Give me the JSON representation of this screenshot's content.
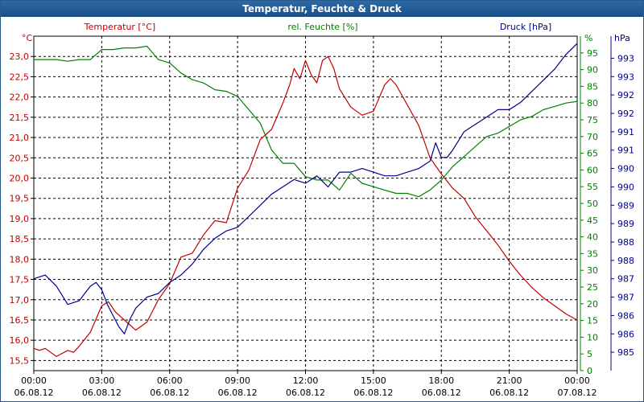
{
  "window": {
    "title": "Temperatur, Feuchte & Druck"
  },
  "chart_data": {
    "type": "line",
    "title": "Temperatur, Feuchte & Druck",
    "x_ticks": [
      [
        "00:00",
        "06.08.12"
      ],
      [
        "03:00",
        "06.08.12"
      ],
      [
        "06:00",
        "06.08.12"
      ],
      [
        "09:00",
        "06.08.12"
      ],
      [
        "12:00",
        "06.08.12"
      ],
      [
        "15:00",
        "06.08.12"
      ],
      [
        "18:00",
        "06.08.12"
      ],
      [
        "21:00",
        "06.08.12"
      ],
      [
        "00:00",
        "07.08.12"
      ]
    ],
    "xlim_hours": [
      0,
      24
    ],
    "grid": true,
    "axes": {
      "left": {
        "unit": "°C",
        "ylim": [
          15.25,
          23.5
        ],
        "ticks": [
          "15,5",
          "16,0",
          "16,5",
          "17,0",
          "17,5",
          "18,0",
          "18,5",
          "19,0",
          "19,5",
          "20,0",
          "20,5",
          "21,0",
          "21,5",
          "22,0",
          "22,5",
          "23,0"
        ],
        "tick_values": [
          15.5,
          16.0,
          16.5,
          17.0,
          17.5,
          18.0,
          18.5,
          19.0,
          19.5,
          20.0,
          20.5,
          21.0,
          21.5,
          22.0,
          22.5,
          23.0
        ],
        "color": "#c00000"
      },
      "right1": {
        "unit": "%",
        "ylim": [
          0,
          100
        ],
        "ticks": [
          "0",
          "5",
          "10",
          "15",
          "20",
          "25",
          "30",
          "35",
          "40",
          "45",
          "50",
          "55",
          "60",
          "65",
          "70",
          "75",
          "80",
          "85",
          "90",
          "95"
        ],
        "tick_values": [
          0,
          5,
          10,
          15,
          20,
          25,
          30,
          35,
          40,
          45,
          50,
          55,
          60,
          65,
          70,
          75,
          80,
          85,
          90,
          95
        ],
        "color": "#008000"
      },
      "right2": {
        "unit": "hPa",
        "ylim": [
          984.5,
          993.6
        ],
        "ticks": [
          "985",
          "986",
          "986",
          "987",
          "987",
          "988",
          "988",
          "989",
          "989",
          "990",
          "990",
          "991",
          "991",
          "992",
          "992",
          "993",
          "993"
        ],
        "tick_values": [
          985,
          985.5,
          986,
          986.5,
          987,
          987.5,
          988,
          988.5,
          989,
          989.5,
          990,
          990.5,
          991,
          991.5,
          992,
          992.5,
          993
        ],
        "color": "#00008b"
      }
    },
    "series": [
      {
        "name": "Temperatur [°C]",
        "axis": "left",
        "color": "#c00000",
        "x": [
          0,
          0.25,
          0.5,
          1,
          1.5,
          1.75,
          2,
          2.5,
          3,
          3.3,
          3.6,
          4,
          4.5,
          5,
          5.5,
          6,
          6.5,
          7,
          7.5,
          8,
          8.5,
          9,
          9.5,
          10,
          10.5,
          11,
          11.3,
          11.5,
          11.75,
          12,
          12.25,
          12.5,
          12.75,
          13,
          13.25,
          13.5,
          14,
          14.5,
          15,
          15.5,
          15.75,
          16,
          16.5,
          17,
          17.5,
          18,
          18.5,
          19,
          19.5,
          20,
          20.5,
          21,
          21.5,
          22,
          22.5,
          23,
          23.5,
          24
        ],
        "y": [
          15.8,
          15.75,
          15.8,
          15.6,
          15.75,
          15.7,
          15.85,
          16.2,
          16.85,
          16.95,
          16.7,
          16.5,
          16.25,
          16.45,
          17.0,
          17.4,
          18.05,
          18.15,
          18.6,
          18.95,
          18.9,
          19.75,
          20.2,
          20.95,
          21.2,
          21.85,
          22.3,
          22.7,
          22.45,
          22.9,
          22.55,
          22.35,
          22.9,
          23.0,
          22.7,
          22.2,
          21.75,
          21.55,
          21.65,
          22.3,
          22.45,
          22.3,
          21.8,
          21.3,
          20.5,
          20.1,
          19.75,
          19.5,
          19.05,
          18.7,
          18.35,
          17.95,
          17.6,
          17.3,
          17.05,
          16.85,
          16.65,
          16.5
        ]
      },
      {
        "name": "rel. Feuchte [%]",
        "axis": "right1",
        "color": "#008000",
        "x": [
          0,
          0.5,
          1,
          1.5,
          2,
          2.5,
          3,
          3.5,
          4,
          4.5,
          5,
          5.5,
          6,
          6.5,
          7,
          7.5,
          8,
          8.5,
          9,
          9.5,
          10,
          10.5,
          11,
          11.5,
          12,
          12.5,
          13,
          13.5,
          14,
          14.5,
          15,
          15.5,
          16,
          16.5,
          17,
          17.5,
          18,
          18.5,
          19,
          19.5,
          20,
          20.5,
          21,
          21.5,
          22,
          22.5,
          23,
          23.5,
          24
        ],
        "y": [
          93,
          93,
          93,
          92.5,
          93,
          93,
          96,
          96,
          96.5,
          96.5,
          97,
          93,
          92,
          89,
          87,
          86,
          84,
          83.5,
          82,
          78,
          74,
          66,
          62,
          62,
          58,
          57,
          57,
          54,
          59,
          56,
          55,
          54,
          53,
          53,
          52,
          54,
          57,
          61,
          64,
          67,
          70,
          71,
          73,
          75,
          76,
          78,
          79,
          80,
          80.5
        ]
      },
      {
        "name": "Druck [hPa]",
        "axis": "right2",
        "color": "#00008b",
        "x": [
          0,
          0.5,
          1,
          1.5,
          2,
          2.5,
          2.75,
          3,
          3.25,
          3.5,
          3.75,
          4,
          4.25,
          4.5,
          5,
          5.5,
          6,
          6.5,
          7,
          7.5,
          8,
          8.5,
          9,
          9.5,
          10,
          10.5,
          11,
          11.5,
          12,
          12.5,
          13,
          13.5,
          14,
          14.5,
          15,
          15.5,
          16,
          16.5,
          17,
          17.5,
          17.75,
          18,
          18.25,
          18.5,
          19,
          19.5,
          20,
          20.5,
          21,
          21.5,
          22,
          22.5,
          23,
          23.5,
          24
        ],
        "y": [
          987.0,
          987.1,
          986.8,
          986.3,
          986.4,
          986.8,
          986.9,
          986.7,
          986.3,
          986.0,
          985.7,
          985.5,
          985.9,
          986.2,
          986.5,
          986.6,
          986.9,
          987.1,
          987.4,
          987.8,
          988.1,
          988.3,
          988.4,
          988.7,
          989.0,
          989.3,
          989.5,
          989.7,
          989.6,
          989.8,
          989.5,
          989.9,
          989.9,
          990.0,
          989.9,
          989.8,
          989.8,
          989.9,
          990.0,
          990.2,
          990.7,
          990.3,
          990.3,
          990.5,
          991.0,
          991.2,
          991.4,
          991.6,
          991.6,
          991.8,
          992.1,
          992.4,
          992.7,
          993.1,
          993.4
        ]
      }
    ]
  }
}
